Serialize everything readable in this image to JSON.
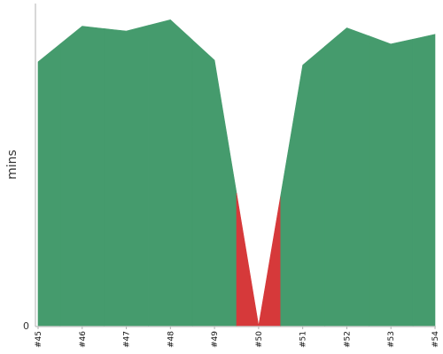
{
  "chart_data": {
    "type": "area",
    "categories": [
      "#45",
      "#46",
      "#47",
      "#48",
      "#49",
      "#50",
      "#51",
      "#52",
      "#53",
      "#54"
    ],
    "values": [
      16.3,
      18.5,
      18.2,
      18.9,
      16.4,
      0.0,
      16.1,
      18.4,
      17.4,
      18.0
    ],
    "ylabel": "mins",
    "ylim": [
      0,
      19.9
    ],
    "yticks": [
      "0"
    ],
    "status": [
      "success",
      "success",
      "success",
      "success",
      "success",
      "failure",
      "success",
      "success",
      "success",
      "success"
    ],
    "colors": {
      "success": "#459b6d",
      "failure": "#d6393a",
      "axis": "#b0b0b0"
    },
    "grid": false,
    "legend": "none"
  }
}
